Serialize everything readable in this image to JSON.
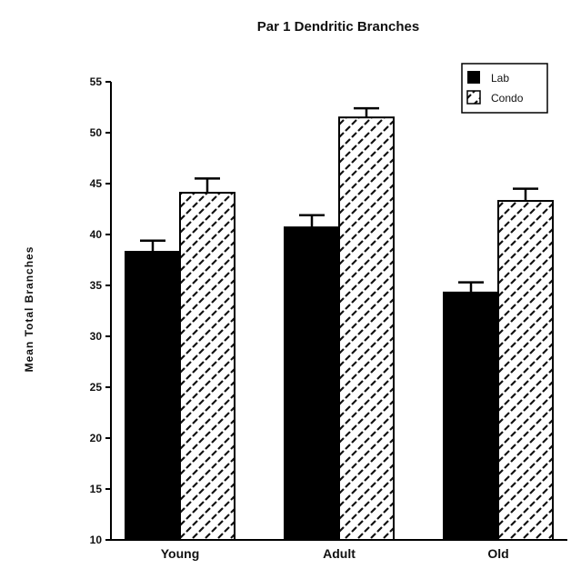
{
  "chart_data": {
    "type": "bar",
    "title": "Par 1 Dendritic Branches",
    "xlabel": "",
    "ylabel": "Mean Total Branches",
    "categories": [
      "Young",
      "Adult",
      "Old"
    ],
    "series": [
      {
        "name": "Lab",
        "values": [
          38.3,
          40.7,
          34.3
        ],
        "errors": [
          1.1,
          1.2,
          1.0
        ],
        "color": "#000000",
        "pattern": "solid"
      },
      {
        "name": "Condo",
        "values": [
          44.1,
          51.5,
          43.3
        ],
        "errors": [
          1.4,
          0.9,
          1.2
        ],
        "color": "#ffffff",
        "pattern": "dashed-diagonal"
      }
    ],
    "ylim": [
      10,
      55
    ],
    "yticks": [
      10,
      15,
      20,
      25,
      30,
      35,
      40,
      45,
      50,
      55
    ],
    "grid": false,
    "legend_position": "top-right"
  }
}
